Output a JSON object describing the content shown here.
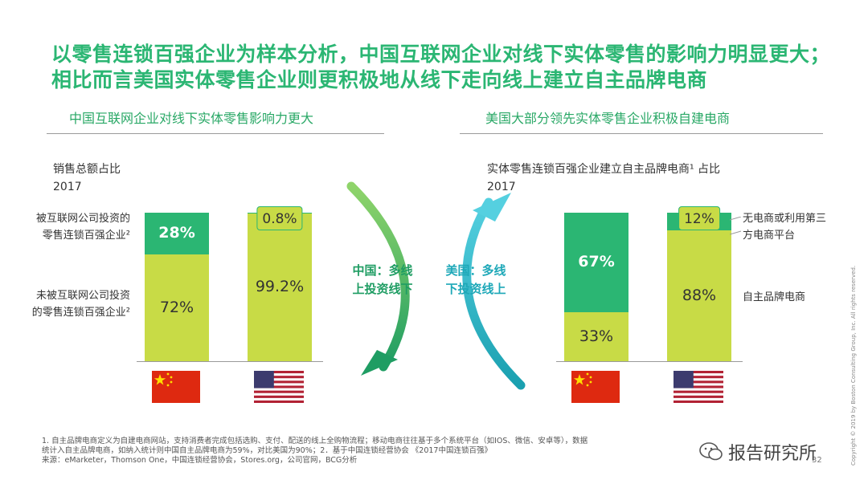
{
  "title": "以零售连锁百强企业为样本分析，中国互联网企业对线下实体零售的影响力明显更大；相比而言美国实体零售企业则更积极地从线下走向线上建立自主品牌电商",
  "left": {
    "heading": "中国互联网企业对线下实体零售影响力更大",
    "axis_title_line1": "销售总额占比",
    "axis_title_line2": "2017",
    "label_top": "被互联网公司投资的零售连锁百强企业²",
    "label_bottom": "未被互联网公司投资的零售连锁百强企业²"
  },
  "right": {
    "heading": "美国大部分领先实体零售企业积极自建电商",
    "axis_title_line1": "实体零售连锁百强企业建立自主品牌电商¹ 占比",
    "axis_title_line2": "2017",
    "label_top": "无电商或利用第三方电商平台",
    "label_bottom": "自主品牌电商"
  },
  "middle": {
    "china_text": "中国：多线上投资线下",
    "us_text": "美国：多线下投资线上"
  },
  "chart_data": [
    {
      "type": "bar",
      "stacked": true,
      "title": "销售总额占比 2017",
      "categories": [
        "中国",
        "美国"
      ],
      "series": [
        {
          "name": "被互联网公司投资的零售连锁百强企业²",
          "values": [
            28,
            0.8
          ],
          "labels": [
            "28%",
            "0.8%"
          ],
          "color": "#2bb673"
        },
        {
          "name": "未被互联网公司投资的零售连锁百强企业²",
          "values": [
            72,
            99.2
          ],
          "labels": [
            "72%",
            "99.2%"
          ],
          "color": "#c8db46"
        }
      ],
      "ylim": [
        0,
        100
      ]
    },
    {
      "type": "bar",
      "stacked": true,
      "title": "实体零售连锁百强企业建立自主品牌电商¹ 占比 2017",
      "categories": [
        "中国",
        "美国"
      ],
      "series": [
        {
          "name": "无电商或利用第三方电商平台",
          "values": [
            67,
            12
          ],
          "labels": [
            "67%",
            "12%"
          ],
          "color": "#2bb673"
        },
        {
          "name": "自主品牌电商",
          "values": [
            33,
            88
          ],
          "labels": [
            "33%",
            "88%"
          ],
          "color": "#c8db46"
        }
      ],
      "ylim": [
        0,
        100
      ]
    }
  ],
  "footnotes": {
    "line1": "1. 自主品牌电商定义为自建电商网站，支持消费者完成包括选购、支付、配送的线上全购物流程；移动电商往往基于多个系统平台（如IOS、微信、安卓等），数据",
    "line2": "统计入自主品牌电商，如纳入统计则中国自主品牌电商为59%，对比美国为90%；2．基于中国连锁经营协会 《2017中国连锁百强》",
    "line3": "来源：eMarketer，Thomson One，中国连锁经营协会，Stores.org，公司官网，BCG分析"
  },
  "page_number": "32",
  "copyright": "Copyright © 2019 by Boston Consulting Group, Inc. All rights reserved.",
  "watermark": "报告研究所",
  "colors": {
    "green": "#2bb673",
    "lime": "#c8db46",
    "teal": "#1ea8b8"
  }
}
